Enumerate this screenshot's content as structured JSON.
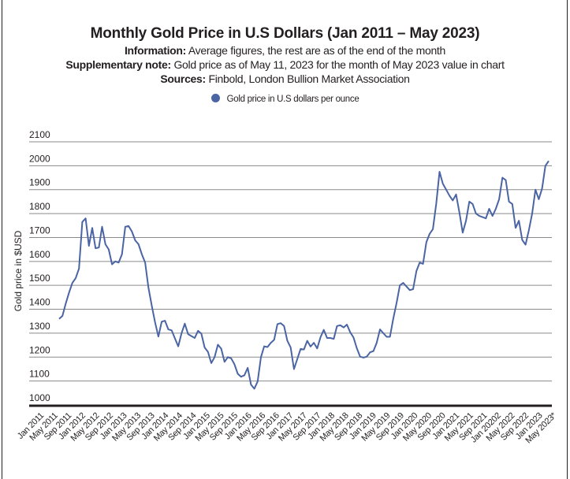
{
  "chart_data": {
    "type": "line",
    "title": "Monthly Gold Price in U.S Dollars (Jan 2011 – May 2023)",
    "subtitles": [
      {
        "label": "Information:",
        "text": " Average figures, the rest are as of the end of the month"
      },
      {
        "label": "Supplementary note:",
        "text": " Gold price as of May 11, 2023 for the month of May 2023 value in chart"
      },
      {
        "label": "Sources:",
        "text": " Finbold, London Bullion Market Association"
      }
    ],
    "xlabel": "",
    "ylabel": "Gold price in $USD",
    "ylim": [
      1000,
      2100
    ],
    "yticks": [
      1000,
      1100,
      1200,
      1300,
      1400,
      1500,
      1600,
      1700,
      1800,
      1900,
      2000,
      2100
    ],
    "grid": true,
    "legend": {
      "position": "top-center",
      "entries": [
        {
          "name": "Gold price in U.S dollars per ounce",
          "color": "#4a64a4"
        }
      ]
    },
    "xtick_labels": [
      "Jan 2011",
      "May 2011",
      "Sep 2011",
      "Jan 2012",
      "May 2012",
      "Sep 2012",
      "Jan 2013",
      "May 2013",
      "Sep 2013",
      "Jan 2014",
      "May 2014",
      "Sep 2014",
      "Jan 2015",
      "May 2015",
      "Sep 2015",
      "Jan 2016",
      "May 2016",
      "Sep 2016",
      "Jan 2017",
      "May 2017",
      "Sep 2017",
      "Jan 2018",
      "May 2018",
      "Sep 2018",
      "Jan 2019",
      "May 2019",
      "Sep 2019",
      "Jan 2020",
      "May 2020",
      "Sep 2020",
      "Jan 2021",
      "May 2021",
      "Sep 2021",
      "Jan 20202",
      "May 2022",
      "Sep 2022",
      "Jan 2023",
      "May 2023*"
    ],
    "x_start": "Jan 2011",
    "x_end": "May 2023",
    "series": [
      {
        "name": "Gold price in U.S dollars per ounce",
        "color": "#4a64a4",
        "values": [
          1360,
          1372,
          1424,
          1470,
          1510,
          1530,
          1570,
          1765,
          1780,
          1665,
          1740,
          1655,
          1658,
          1745,
          1672,
          1650,
          1588,
          1600,
          1595,
          1630,
          1745,
          1748,
          1725,
          1688,
          1672,
          1630,
          1595,
          1490,
          1415,
          1345,
          1286,
          1348,
          1352,
          1316,
          1312,
          1278,
          1245,
          1300,
          1340,
          1296,
          1288,
          1280,
          1310,
          1298,
          1240,
          1222,
          1175,
          1200,
          1252,
          1235,
          1180,
          1200,
          1195,
          1170,
          1130,
          1118,
          1124,
          1155,
          1085,
          1068,
          1098,
          1200,
          1245,
          1242,
          1260,
          1272,
          1338,
          1342,
          1330,
          1268,
          1240,
          1150,
          1192,
          1234,
          1232,
          1268,
          1244,
          1260,
          1236,
          1283,
          1314,
          1280,
          1280,
          1276,
          1330,
          1333,
          1324,
          1336,
          1304,
          1282,
          1237,
          1202,
          1198,
          1202,
          1220,
          1225,
          1260,
          1316,
          1300,
          1285,
          1285,
          1360,
          1426,
          1500,
          1510,
          1495,
          1480,
          1484,
          1560,
          1595,
          1590,
          1680,
          1715,
          1735,
          1840,
          1975,
          1925,
          1900,
          1875,
          1855,
          1880,
          1805,
          1720,
          1770,
          1850,
          1840,
          1800,
          1790,
          1785,
          1780,
          1820,
          1790,
          1820,
          1860,
          1950,
          1940,
          1850,
          1840,
          1740,
          1770,
          1690,
          1670,
          1730,
          1800,
          1900,
          1860,
          1905,
          2000,
          2020
        ]
      }
    ]
  }
}
